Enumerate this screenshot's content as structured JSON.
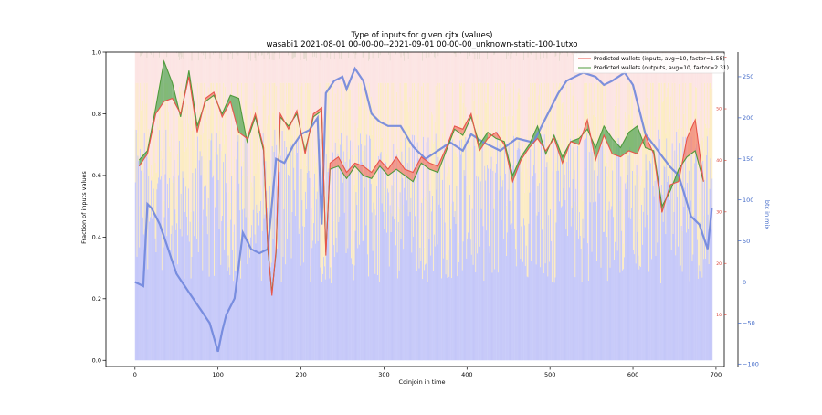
{
  "chart_data": {
    "type": "bar",
    "title": "Type of inputs for given cjtx (values)",
    "subtitle": "wasabi1 2021-08-01 00-00-00--2021-09-01 00-00-00_unknown-static-100-1utxo",
    "xlabel": "Coinjoin in time",
    "ylabel": "Fraction of inputs values",
    "y3label": "btc in mix",
    "xlim": [
      -35,
      710
    ],
    "ylim": [
      -0.02,
      1.0
    ],
    "y2lim": [
      0,
      61
    ],
    "y3lim": [
      -103,
      280
    ],
    "xticks": [
      "0",
      "100",
      "200",
      "300",
      "400",
      "500",
      "600",
      "700"
    ],
    "yticks": [
      "0.0",
      "0.2",
      "0.4",
      "0.6",
      "0.8",
      "1.0"
    ],
    "y2ticks": [
      "10",
      "20",
      "30",
      "40",
      "50",
      "60"
    ],
    "y3ticks": [
      "−100",
      "−50",
      "0",
      "50",
      "100",
      "150",
      "200",
      "250"
    ],
    "grid": false,
    "legend_position": "top-right",
    "legend": [
      "Predicted wallets (inputs, avg=10, factor=1.58)",
      "Predicted wallets (outputs, avg=10, factor=2.31)"
    ],
    "colors": {
      "inputs_line": "#e8554a",
      "outputs_line": "#4f9a3c",
      "fill_inputs_gt": "#f08070",
      "fill_outputs_gt": "#5aa85a",
      "btc_line": "#6f86dc",
      "bar_blue": "#a9aef5",
      "bar_yellow": "#fbe3a6",
      "bar_pink": "#fbd7d5",
      "bar_tan": "#d9c6b5",
      "y3_axis": "#4169c8",
      "y2_axis": "#d63a2d"
    },
    "series": [
      {
        "name": "Predicted wallets (inputs, avg=10, factor=1.58)",
        "x": [
          5,
          15,
          25,
          35,
          45,
          55,
          65,
          75,
          85,
          95,
          105,
          115,
          125,
          135,
          145,
          155,
          160,
          165,
          170,
          175,
          185,
          195,
          205,
          215,
          225,
          230,
          235,
          245,
          255,
          265,
          275,
          285,
          295,
          305,
          315,
          325,
          335,
          345,
          355,
          365,
          375,
          385,
          395,
          405,
          415,
          425,
          435,
          445,
          455,
          465,
          475,
          485,
          495,
          505,
          515,
          525,
          535,
          545,
          555,
          565,
          575,
          585,
          595,
          605,
          615,
          625,
          635,
          645,
          655,
          665,
          675,
          685
        ],
        "values": [
          0.63,
          0.67,
          0.8,
          0.84,
          0.85,
          0.8,
          0.92,
          0.74,
          0.85,
          0.87,
          0.79,
          0.84,
          0.74,
          0.72,
          0.8,
          0.69,
          0.37,
          0.21,
          0.36,
          0.8,
          0.75,
          0.81,
          0.67,
          0.8,
          0.82,
          0.34,
          0.64,
          0.66,
          0.61,
          0.64,
          0.63,
          0.61,
          0.65,
          0.62,
          0.66,
          0.62,
          0.61,
          0.66,
          0.64,
          0.63,
          0.69,
          0.76,
          0.75,
          0.8,
          0.68,
          0.72,
          0.74,
          0.7,
          0.58,
          0.65,
          0.69,
          0.72,
          0.68,
          0.72,
          0.64,
          0.71,
          0.7,
          0.78,
          0.65,
          0.73,
          0.67,
          0.66,
          0.68,
          0.67,
          0.73,
          0.67,
          0.48,
          0.57,
          0.58,
          0.72,
          0.78,
          0.58
        ]
      },
      {
        "name": "Predicted wallets (outputs, avg=10, factor=2.31)",
        "x": [
          5,
          15,
          25,
          35,
          45,
          55,
          65,
          75,
          85,
          95,
          105,
          115,
          125,
          135,
          145,
          155,
          160,
          165,
          170,
          175,
          185,
          195,
          205,
          215,
          225,
          230,
          235,
          245,
          255,
          265,
          275,
          285,
          295,
          305,
          315,
          325,
          335,
          345,
          355,
          365,
          375,
          385,
          395,
          405,
          415,
          425,
          435,
          445,
          455,
          465,
          475,
          485,
          495,
          505,
          515,
          525,
          535,
          545,
          555,
          565,
          575,
          585,
          595,
          605,
          615,
          625,
          635,
          645,
          655,
          665,
          675,
          685
        ],
        "values": [
          0.65,
          0.68,
          0.82,
          0.97,
          0.9,
          0.79,
          0.94,
          0.76,
          0.84,
          0.86,
          0.8,
          0.86,
          0.85,
          0.71,
          0.79,
          0.68,
          0.36,
          0.22,
          0.35,
          0.79,
          0.76,
          0.8,
          0.68,
          0.79,
          0.81,
          0.35,
          0.62,
          0.63,
          0.59,
          0.63,
          0.6,
          0.59,
          0.63,
          0.6,
          0.62,
          0.6,
          0.58,
          0.64,
          0.62,
          0.61,
          0.68,
          0.75,
          0.73,
          0.79,
          0.7,
          0.74,
          0.72,
          0.71,
          0.6,
          0.66,
          0.7,
          0.76,
          0.67,
          0.73,
          0.66,
          0.71,
          0.72,
          0.75,
          0.69,
          0.76,
          0.72,
          0.69,
          0.74,
          0.76,
          0.69,
          0.68,
          0.5,
          0.55,
          0.62,
          0.66,
          0.68,
          0.58
        ]
      },
      {
        "name": "btc in mix",
        "axis": "right-outer",
        "x": [
          0,
          10,
          15,
          20,
          30,
          40,
          50,
          60,
          70,
          80,
          90,
          100,
          105,
          110,
          115,
          120,
          130,
          140,
          150,
          160,
          170,
          180,
          190,
          200,
          210,
          220,
          225,
          230,
          240,
          250,
          255,
          265,
          275,
          285,
          295,
          305,
          320,
          335,
          350,
          365,
          380,
          395,
          405,
          420,
          440,
          460,
          480,
          500,
          510,
          520,
          540,
          555,
          565,
          575,
          590,
          600,
          615,
          630,
          645,
          655,
          670,
          680,
          690,
          695
        ],
        "values": [
          0,
          -5,
          95,
          90,
          70,
          40,
          10,
          -5,
          -20,
          -35,
          -50,
          -85,
          -60,
          -40,
          -30,
          -20,
          60,
          40,
          35,
          40,
          150,
          145,
          165,
          180,
          185,
          200,
          70,
          230,
          245,
          250,
          235,
          260,
          245,
          205,
          195,
          190,
          190,
          165,
          150,
          160,
          170,
          160,
          180,
          170,
          160,
          175,
          170,
          210,
          230,
          245,
          255,
          250,
          240,
          245,
          255,
          240,
          180,
          160,
          140,
          130,
          80,
          70,
          40,
          90
        ]
      }
    ],
    "composition_bands": [
      {
        "name": "blue",
        "approx_fraction_range": [
          0.25,
          0.5
        ]
      },
      {
        "name": "yellow",
        "approx_fraction_range": [
          0.1,
          0.45
        ]
      },
      {
        "name": "pink",
        "approx_fraction_range": [
          0.05,
          0.4
        ]
      },
      {
        "name": "tan",
        "approx_fraction_range": [
          0.0,
          0.04
        ]
      }
    ]
  }
}
